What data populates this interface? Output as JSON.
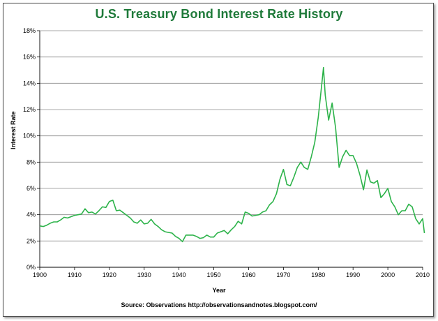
{
  "chart_data": {
    "type": "line",
    "title": "U.S. Treasury Bond Interest Rate History",
    "xlabel": "Year",
    "ylabel": "Interest Rate",
    "source": "Source: Observations  http://observationsandnotes.blogspot.com/",
    "xlim": [
      1900,
      2010
    ],
    "ylim": [
      0,
      18
    ],
    "x_ticks": [
      1900,
      1910,
      1920,
      1930,
      1940,
      1950,
      1960,
      1970,
      1980,
      1990,
      2000,
      2010
    ],
    "y_ticks": [
      "0%",
      "2%",
      "4%",
      "6%",
      "8%",
      "10%",
      "12%",
      "14%",
      "16%",
      "18%"
    ],
    "y_tick_values": [
      0,
      2,
      4,
      6,
      8,
      10,
      12,
      14,
      16,
      18
    ],
    "grid": "horizontal",
    "legend": "none",
    "line_color": "#2db34a",
    "series": [
      {
        "x": [
          1900,
          1901,
          1902,
          1903,
          1904,
          1905,
          1906,
          1907,
          1908,
          1909,
          1910,
          1911,
          1912,
          1913,
          1914,
          1915,
          1916,
          1917,
          1918,
          1919,
          1920,
          1921,
          1922,
          1923,
          1924,
          1925,
          1926,
          1927,
          1928,
          1929,
          1930,
          1931,
          1932,
          1933,
          1934,
          1935,
          1936,
          1937,
          1938,
          1939,
          1940,
          1941,
          1942,
          1943,
          1944,
          1945,
          1946,
          1947,
          1948,
          1949,
          1950,
          1951,
          1952,
          1953,
          1954,
          1955,
          1956,
          1957,
          1958,
          1959,
          1960,
          1961,
          1962,
          1963,
          1964,
          1965,
          1966,
          1967,
          1968,
          1969,
          1970,
          1971,
          1972,
          1973,
          1974,
          1975,
          1976,
          1977,
          1978,
          1979,
          1980,
          1981,
          1981.5,
          1982,
          1983,
          1984,
          1985,
          1986,
          1987,
          1988,
          1989,
          1990,
          1991,
          1992,
          1993,
          1994,
          1995,
          1996,
          1997,
          1998,
          1999,
          2000,
          2001,
          2002,
          2003,
          2004,
          2005,
          2006,
          2007,
          2008,
          2009,
          2010,
          2010.5
        ],
        "values": [
          3.15,
          3.1,
          3.2,
          3.35,
          3.45,
          3.45,
          3.6,
          3.8,
          3.75,
          3.85,
          3.95,
          4.0,
          4.05,
          4.45,
          4.15,
          4.2,
          4.05,
          4.3,
          4.6,
          4.55,
          5.0,
          5.1,
          4.3,
          4.35,
          4.15,
          3.95,
          3.75,
          3.45,
          3.35,
          3.6,
          3.3,
          3.35,
          3.65,
          3.3,
          3.1,
          2.85,
          2.7,
          2.65,
          2.6,
          2.35,
          2.2,
          1.95,
          2.45,
          2.45,
          2.45,
          2.35,
          2.2,
          2.25,
          2.45,
          2.3,
          2.3,
          2.6,
          2.7,
          2.8,
          2.55,
          2.85,
          3.1,
          3.5,
          3.3,
          4.2,
          4.1,
          3.9,
          3.95,
          4.0,
          4.2,
          4.3,
          4.75,
          5.0,
          5.6,
          6.7,
          7.45,
          6.3,
          6.2,
          6.85,
          7.6,
          8.0,
          7.6,
          7.45,
          8.4,
          9.5,
          11.4,
          13.9,
          15.2,
          13.1,
          11.2,
          12.5,
          10.6,
          7.6,
          8.4,
          8.9,
          8.5,
          8.5,
          7.9,
          7.0,
          5.9,
          7.4,
          6.5,
          6.4,
          6.6,
          5.3,
          5.6,
          6.0,
          5.0,
          4.6,
          4.0,
          4.3,
          4.3,
          4.8,
          4.6,
          3.7,
          3.3,
          3.7,
          2.6
        ]
      }
    ]
  }
}
